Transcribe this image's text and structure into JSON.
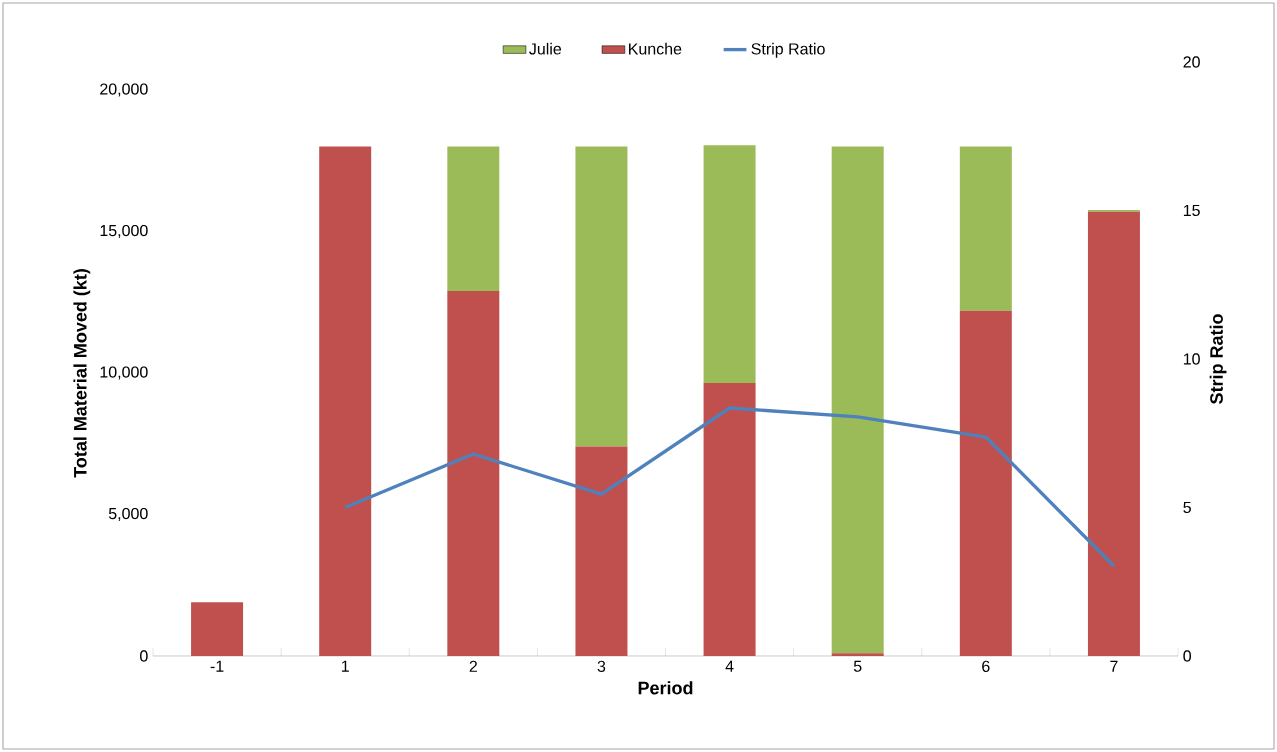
{
  "chart_data": {
    "type": "bar",
    "stacked": true,
    "xlabel": "Period",
    "ylabel": "Total Material Moved (kt)",
    "y2label": "Strip Ratio",
    "categories": [
      "-1",
      "1",
      "2",
      "3",
      "4",
      "5",
      "6",
      "7"
    ],
    "series": [
      {
        "name": "Kunche",
        "color": "#c0504d",
        "values": [
          1900,
          18000,
          12900,
          7400,
          9650,
          100,
          12200,
          15700
        ]
      },
      {
        "name": "Julie",
        "color": "#9bbb59",
        "values": [
          0,
          0,
          5100,
          10600,
          8400,
          17900,
          5800,
          60
        ]
      },
      {
        "name": "Strip Ratio",
        "type": "line",
        "axis": "y2",
        "color": "#4f81bd",
        "values": [
          null,
          5.0,
          6.8,
          5.45,
          8.35,
          8.05,
          7.37,
          3.03
        ]
      }
    ],
    "ylim": [
      0,
      20000
    ],
    "yticks": [
      {
        "value": 0,
        "label": "0"
      },
      {
        "value": 5000,
        "label": "5,000"
      },
      {
        "value": 10000,
        "label": "10,000"
      },
      {
        "value": 15000,
        "label": "15,000"
      },
      {
        "value": 20000,
        "label": "20,000"
      }
    ],
    "y2lim": [
      0,
      20
    ],
    "y2ticks": [
      0,
      5,
      10,
      15,
      20
    ],
    "legend": "top",
    "grid": false,
    "marker": "none",
    "line_style": "solid"
  }
}
